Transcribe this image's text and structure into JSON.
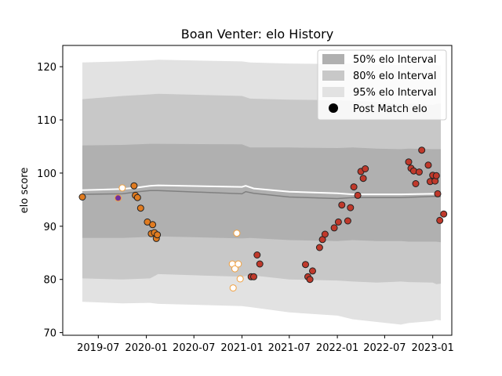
{
  "chart_data": {
    "type": "line",
    "title": "Boan Venter: elo History",
    "xlabel": "",
    "ylabel": "elo score",
    "xlim": [
      "2019-02-15",
      "2023-03-15"
    ],
    "ylim": [
      69.5,
      124
    ],
    "yticks": [
      70,
      80,
      90,
      100,
      110,
      120
    ],
    "xticks": [
      "2019-07",
      "2020-01",
      "2020-07",
      "2021-01",
      "2021-07",
      "2022-01",
      "2022-07",
      "2023-01"
    ],
    "xtick_labels": [
      "2019-07",
      "2020-01",
      "2020-07",
      "2021-01",
      "2021-07",
      "2022-01",
      "2022-07",
      "2023-01"
    ],
    "legend": {
      "placement": "top-right",
      "entries": [
        "50% elo Interval",
        "80% elo Interval",
        "95% elo Interval",
        "Post Match elo"
      ]
    },
    "colors": {
      "band_50": "#b0b0b0",
      "band_80": "#c8c8c8",
      "band_95": "#e2e2e2",
      "mean_line": "#ffffff",
      "median_line": "#808080",
      "marker_edge_dark": "#222222",
      "marker_edge_light": "#f0a040"
    },
    "bands": [
      {
        "name": "95% elo Interval",
        "x": [
          "2019-05-01",
          "2019-10-01",
          "2020-01-15",
          "2020-02-15",
          "2021-01-01",
          "2021-02-01",
          "2021-07-01",
          "2022-01-01",
          "2022-03-01",
          "2022-06-01",
          "2022-09-01",
          "2022-10-01",
          "2023-01-01",
          "2023-01-15",
          "2023-02-01"
        ],
        "upper": [
          120.8,
          121.0,
          121.2,
          121.3,
          121.0,
          120.8,
          120.6,
          120.5,
          120.6,
          120.4,
          120.3,
          120.5,
          120.5,
          120.3,
          120.2
        ],
        "lower": [
          75.8,
          75.5,
          75.6,
          75.4,
          75.0,
          74.8,
          73.8,
          73.2,
          72.5,
          72.0,
          71.5,
          71.8,
          72.2,
          72.4,
          72.3
        ]
      },
      {
        "name": "80% elo Interval",
        "x": [
          "2019-05-01",
          "2019-10-01",
          "2020-01-15",
          "2020-02-15",
          "2021-01-01",
          "2021-02-01",
          "2021-07-01",
          "2022-01-01",
          "2022-03-01",
          "2022-06-01",
          "2022-09-01",
          "2022-10-01",
          "2023-01-01",
          "2023-01-15",
          "2023-02-01"
        ],
        "upper": [
          113.9,
          114.5,
          114.8,
          114.9,
          114.5,
          114.0,
          113.8,
          113.7,
          113.6,
          113.4,
          113.0,
          113.1,
          112.8,
          113.0,
          113.1
        ],
        "lower": [
          80.2,
          80.0,
          80.2,
          81.0,
          80.5,
          80.8,
          80.0,
          79.8,
          79.6,
          79.4,
          79.6,
          79.5,
          79.4,
          79.1,
          79.2
        ]
      },
      {
        "name": "50% elo Interval",
        "x": [
          "2019-05-01",
          "2019-10-01",
          "2020-01-15",
          "2020-02-15",
          "2021-01-01",
          "2021-02-01",
          "2021-07-01",
          "2022-01-01",
          "2022-03-01",
          "2022-06-01",
          "2022-09-01",
          "2022-10-01",
          "2023-01-01",
          "2023-01-15",
          "2023-02-01"
        ],
        "upper": [
          105.2,
          105.3,
          105.5,
          105.5,
          105.4,
          104.8,
          104.8,
          104.7,
          104.8,
          104.6,
          104.5,
          104.6,
          104.5,
          104.5,
          104.5
        ],
        "lower": [
          87.8,
          87.8,
          88.0,
          88.1,
          87.7,
          87.8,
          87.4,
          87.2,
          87.4,
          87.2,
          87.2,
          87.1,
          87.1,
          87.1,
          87.0
        ]
      }
    ],
    "mean_line": {
      "x": [
        "2019-05-01",
        "2019-10-01",
        "2019-12-01",
        "2020-01-15",
        "2020-02-15",
        "2021-01-01",
        "2021-01-15",
        "2021-02-15",
        "2021-07-01",
        "2022-01-01",
        "2022-03-01",
        "2022-06-01",
        "2022-09-01",
        "2023-01-01",
        "2023-02-01"
      ],
      "y": [
        96.8,
        97.0,
        97.3,
        97.6,
        97.7,
        97.4,
        97.6,
        97.1,
        96.5,
        96.2,
        96.0,
        96.0,
        96.0,
        96.1,
        96.0
      ]
    },
    "median_line": {
      "x": [
        "2019-05-01",
        "2019-10-01",
        "2019-12-01",
        "2020-01-15",
        "2020-02-15",
        "2021-01-01",
        "2021-01-15",
        "2021-02-15",
        "2021-07-01",
        "2022-01-01",
        "2022-03-01",
        "2022-06-01",
        "2022-09-01",
        "2023-01-01",
        "2023-02-01"
      ],
      "y": [
        96.0,
        96.1,
        96.5,
        96.7,
        96.7,
        96.1,
        96.5,
        96.2,
        95.5,
        95.2,
        95.4,
        95.4,
        95.4,
        95.6,
        95.6
      ]
    },
    "points": [
      {
        "date": "2019-05-01",
        "elo": 95.5,
        "fill": "#e07b20",
        "edge": "#222222"
      },
      {
        "date": "2019-09-15",
        "elo": 95.3,
        "fill": "#7030a0",
        "edge": "#f0a040"
      },
      {
        "date": "2019-10-01",
        "elo": 97.2,
        "fill": "#ffffff",
        "edge": "#f0a040"
      },
      {
        "date": "2019-11-15",
        "elo": 97.6,
        "fill": "#e07b20",
        "edge": "#222222"
      },
      {
        "date": "2019-11-20",
        "elo": 95.8,
        "fill": "#e07b20",
        "edge": "#222222"
      },
      {
        "date": "2019-11-28",
        "elo": 95.4,
        "fill": "#e07b20",
        "edge": "#222222"
      },
      {
        "date": "2019-12-10",
        "elo": 93.4,
        "fill": "#e07b20",
        "edge": "#222222"
      },
      {
        "date": "2020-01-05",
        "elo": 90.8,
        "fill": "#e07b20",
        "edge": "#222222"
      },
      {
        "date": "2020-01-20",
        "elo": 88.6,
        "fill": "#e07b20",
        "edge": "#222222"
      },
      {
        "date": "2020-01-25",
        "elo": 90.3,
        "fill": "#e07b20",
        "edge": "#222222"
      },
      {
        "date": "2020-02-01",
        "elo": 88.8,
        "fill": "#e07b20",
        "edge": "#222222"
      },
      {
        "date": "2020-02-08",
        "elo": 87.7,
        "fill": "#e07b20",
        "edge": "#222222"
      },
      {
        "date": "2020-02-12",
        "elo": 88.4,
        "fill": "#e07b20",
        "edge": "#222222"
      },
      {
        "date": "2020-11-25",
        "elo": 82.9,
        "fill": "#ffffff",
        "edge": "#f0a040"
      },
      {
        "date": "2020-11-28",
        "elo": 78.4,
        "fill": "#ffffff",
        "edge": "#f0a040"
      },
      {
        "date": "2020-12-05",
        "elo": 82.0,
        "fill": "#ffffff",
        "edge": "#f0a040"
      },
      {
        "date": "2020-12-12",
        "elo": 88.7,
        "fill": "#ffffff",
        "edge": "#f0a040"
      },
      {
        "date": "2020-12-18",
        "elo": 82.9,
        "fill": "#ffffff",
        "edge": "#f0a040"
      },
      {
        "date": "2020-12-25",
        "elo": 80.1,
        "fill": "#ffffff",
        "edge": "#f0a040"
      },
      {
        "date": "2021-02-05",
        "elo": 80.5,
        "fill": "#c0392b",
        "edge": "#222222"
      },
      {
        "date": "2021-02-15",
        "elo": 80.5,
        "fill": "#c0392b",
        "edge": "#222222"
      },
      {
        "date": "2021-02-28",
        "elo": 84.6,
        "fill": "#c0392b",
        "edge": "#222222"
      },
      {
        "date": "2021-03-10",
        "elo": 82.9,
        "fill": "#c0392b",
        "edge": "#222222"
      },
      {
        "date": "2021-09-01",
        "elo": 82.8,
        "fill": "#c0392b",
        "edge": "#222222"
      },
      {
        "date": "2021-09-10",
        "elo": 80.5,
        "fill": "#c0392b",
        "edge": "#222222"
      },
      {
        "date": "2021-09-18",
        "elo": 80.0,
        "fill": "#c0392b",
        "edge": "#222222"
      },
      {
        "date": "2021-09-28",
        "elo": 81.6,
        "fill": "#c0392b",
        "edge": "#222222"
      },
      {
        "date": "2021-10-25",
        "elo": 86.0,
        "fill": "#c0392b",
        "edge": "#222222"
      },
      {
        "date": "2021-11-05",
        "elo": 87.5,
        "fill": "#c0392b",
        "edge": "#222222"
      },
      {
        "date": "2021-11-15",
        "elo": 88.5,
        "fill": "#c0392b",
        "edge": "#222222"
      },
      {
        "date": "2021-12-20",
        "elo": 89.7,
        "fill": "#c0392b",
        "edge": "#222222"
      },
      {
        "date": "2022-01-05",
        "elo": 90.8,
        "fill": "#c0392b",
        "edge": "#222222"
      },
      {
        "date": "2022-01-18",
        "elo": 94.0,
        "fill": "#c0392b",
        "edge": "#222222"
      },
      {
        "date": "2022-02-10",
        "elo": 91.0,
        "fill": "#c0392b",
        "edge": "#222222"
      },
      {
        "date": "2022-02-20",
        "elo": 93.5,
        "fill": "#c0392b",
        "edge": "#222222"
      },
      {
        "date": "2022-03-05",
        "elo": 97.4,
        "fill": "#c0392b",
        "edge": "#222222"
      },
      {
        "date": "2022-03-20",
        "elo": 95.8,
        "fill": "#c0392b",
        "edge": "#222222"
      },
      {
        "date": "2022-04-01",
        "elo": 100.3,
        "fill": "#c0392b",
        "edge": "#222222"
      },
      {
        "date": "2022-04-10",
        "elo": 99.0,
        "fill": "#c0392b",
        "edge": "#222222"
      },
      {
        "date": "2022-04-18",
        "elo": 100.8,
        "fill": "#c0392b",
        "edge": "#222222"
      },
      {
        "date": "2022-10-01",
        "elo": 102.1,
        "fill": "#c0392b",
        "edge": "#222222"
      },
      {
        "date": "2022-10-10",
        "elo": 100.9,
        "fill": "#c0392b",
        "edge": "#222222"
      },
      {
        "date": "2022-10-20",
        "elo": 100.4,
        "fill": "#c0392b",
        "edge": "#222222"
      },
      {
        "date": "2022-10-28",
        "elo": 98.0,
        "fill": "#c0392b",
        "edge": "#222222"
      },
      {
        "date": "2022-11-10",
        "elo": 100.2,
        "fill": "#c0392b",
        "edge": "#222222"
      },
      {
        "date": "2022-11-20",
        "elo": 104.3,
        "fill": "#c0392b",
        "edge": "#222222"
      },
      {
        "date": "2022-12-15",
        "elo": 101.5,
        "fill": "#c0392b",
        "edge": "#222222"
      },
      {
        "date": "2022-12-22",
        "elo": 98.4,
        "fill": "#c0392b",
        "edge": "#222222"
      },
      {
        "date": "2023-01-01",
        "elo": 99.6,
        "fill": "#c0392b",
        "edge": "#222222"
      },
      {
        "date": "2023-01-10",
        "elo": 98.5,
        "fill": "#c0392b",
        "edge": "#222222"
      },
      {
        "date": "2023-01-15",
        "elo": 99.5,
        "fill": "#c0392b",
        "edge": "#222222"
      },
      {
        "date": "2023-01-20",
        "elo": 96.1,
        "fill": "#c0392b",
        "edge": "#222222"
      },
      {
        "date": "2023-01-28",
        "elo": 91.1,
        "fill": "#c0392b",
        "edge": "#222222"
      },
      {
        "date": "2023-02-12",
        "elo": 92.3,
        "fill": "#c0392b",
        "edge": "#222222"
      }
    ]
  }
}
